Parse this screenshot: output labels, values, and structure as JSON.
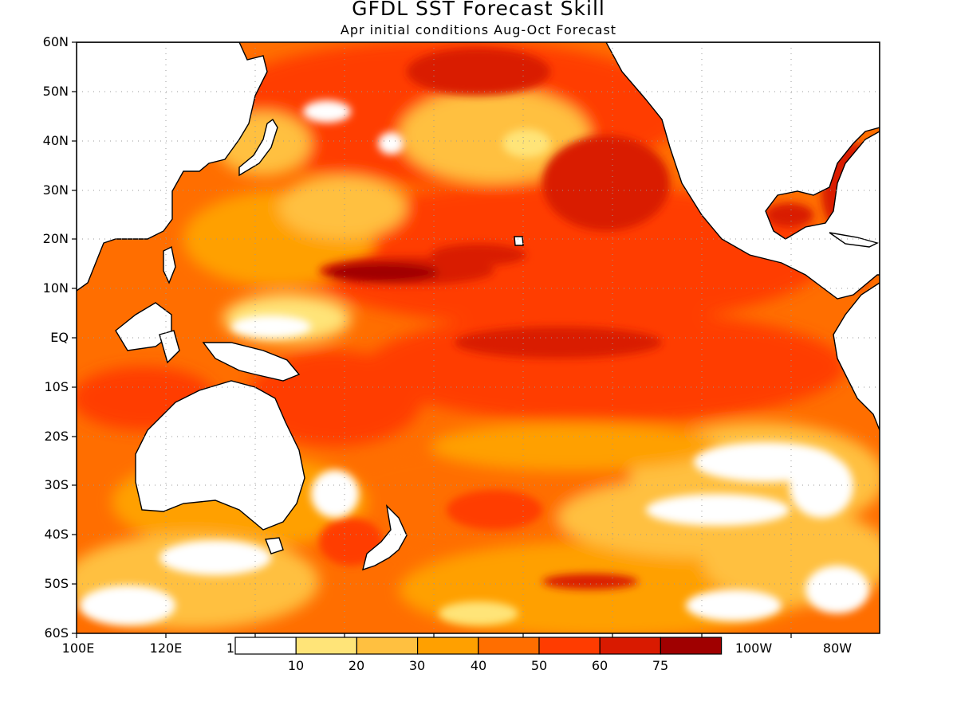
{
  "title": "GFDL SST Forecast Skill",
  "subtitle": "Apr initial conditions  Aug-Oct Forecast",
  "lat_labels": [
    "60N",
    "50N",
    "40N",
    "30N",
    "20N",
    "10N",
    "EQ",
    "10S",
    "20S",
    "30S",
    "40S",
    "50S",
    "60S"
  ],
  "lon_labels": [
    "100E",
    "120E",
    "1",
    "100W",
    "80W"
  ],
  "legend": {
    "levels": [
      "10",
      "20",
      "30",
      "40",
      "50",
      "60",
      "75"
    ],
    "colors": [
      "#ffffff",
      "#ffe478",
      "#ffc040",
      "#ffa000",
      "#ff6e00",
      "#ff3c00",
      "#d91a00",
      "#a00000"
    ]
  },
  "colors": {
    "land": "#ffffff",
    "coast": "#000000",
    "frame": "#000000"
  }
}
